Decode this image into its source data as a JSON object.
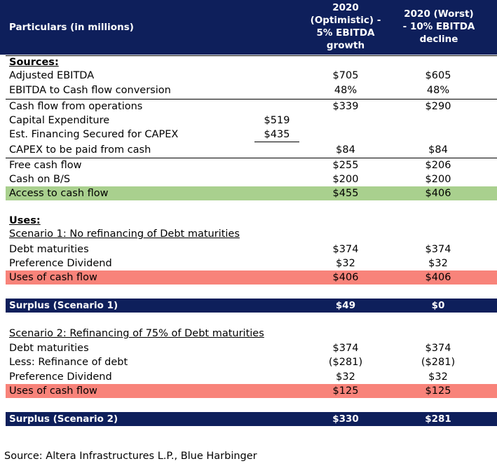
{
  "header": {
    "particulars": "Particulars (in millions)",
    "optimistic": "2020 (Optimistic) - 5% EBITDA growth",
    "worst": "2020 (Worst) - 10% EBITDA decline"
  },
  "table": {
    "rows": [
      [
        "Sources:",
        null,
        null,
        null
      ],
      [
        "Adjusted EBITDA",
        null,
        "$705",
        "$605"
      ],
      [
        "EBITDA to Cash flow conversion",
        null,
        "48%",
        "48%"
      ],
      [
        "Cash flow from operations",
        null,
        "$339",
        "$290"
      ],
      [
        "Capital Expenditure",
        "$519",
        null,
        null
      ],
      [
        "Est. Financing Secured for CAPEX",
        "$435",
        null,
        null
      ],
      [
        "CAPEX to be paid from cash",
        null,
        "$84",
        "$84"
      ],
      [
        "Free cash flow",
        null,
        "$255",
        "$206"
      ],
      [
        "Cash on B/S",
        null,
        "$200",
        "$200"
      ],
      [
        "Access to cash flow",
        null,
        "$455",
        "$406"
      ],
      [
        "Uses:",
        null,
        null,
        null
      ],
      [
        "Scenario 1: No refinancing of Debt maturities",
        null,
        null,
        null
      ],
      [
        "Debt maturities",
        null,
        "$374",
        "$374"
      ],
      [
        "Preference Dividend",
        null,
        "$32",
        "$32"
      ],
      [
        "Uses of cash flow",
        null,
        "$406",
        "$406"
      ],
      [
        "Surplus (Scenario 1)",
        null,
        "$49",
        "$0"
      ],
      [
        "Scenario 2: Refinancing of 75% of Debt maturities",
        null,
        null,
        null
      ],
      [
        "Debt maturities",
        null,
        "$374",
        "$374"
      ],
      [
        "Less: Refinance of debt",
        null,
        "($281)",
        "($281)"
      ],
      [
        "Preference Dividend",
        null,
        "$32",
        "$32"
      ],
      [
        "Uses of cash flow",
        null,
        "$125",
        "$125"
      ],
      [
        "Surplus (Scenario 2)",
        null,
        "$330",
        "$281"
      ]
    ]
  },
  "source": "Source: Altera Infrastructures L.P., Blue Harbinger"
}
